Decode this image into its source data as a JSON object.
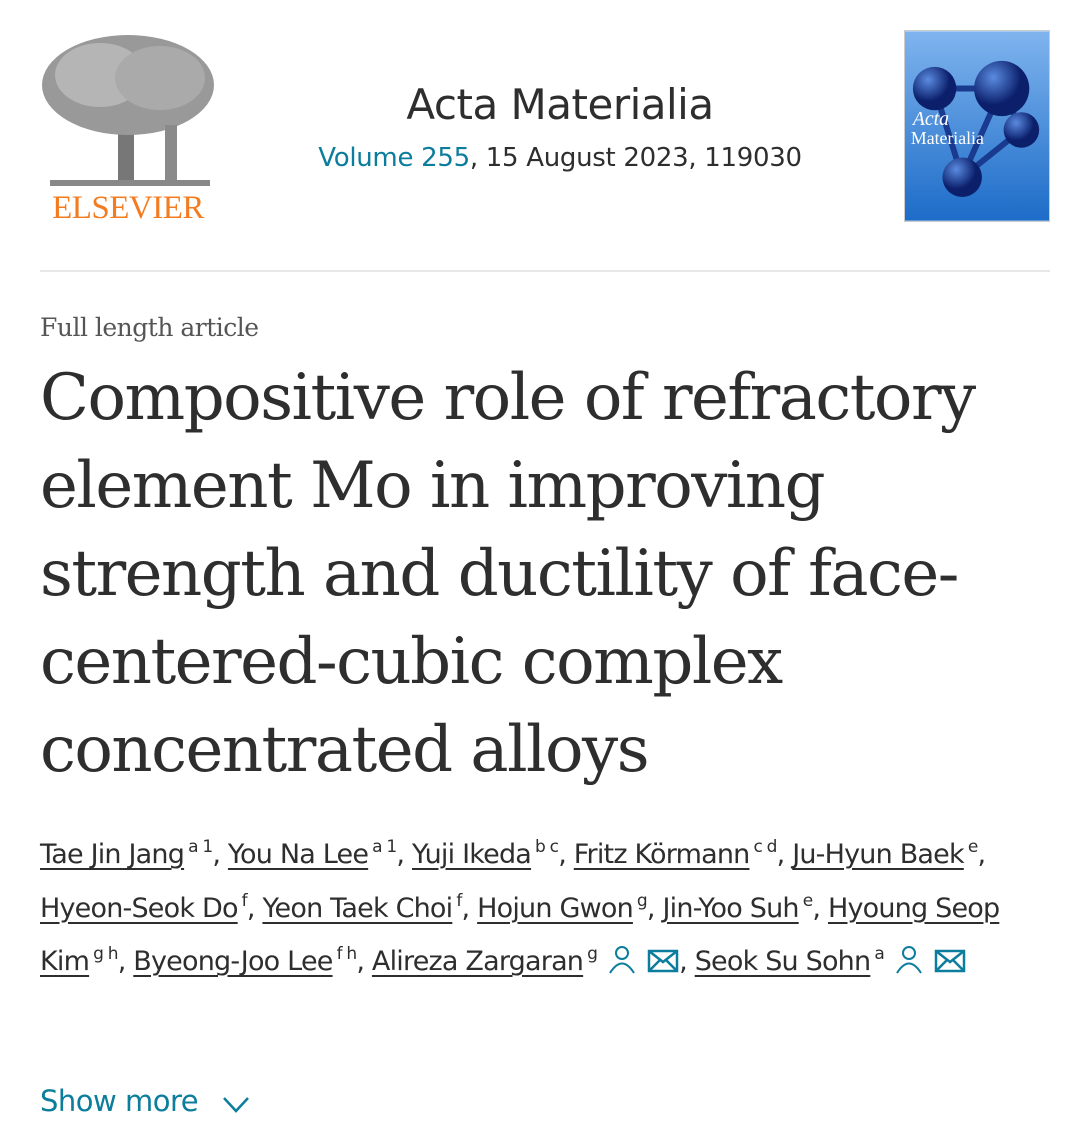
{
  "header": {
    "publisher_logo": "ELSEVIER",
    "journal_title": "Acta Materialia",
    "volume_link": "Volume 255",
    "date_and_article": ", 15 August 2023, 119030",
    "cover_title": "Acta Materialia"
  },
  "article": {
    "type": "Full length article",
    "title": "Compositive role of refractory element Mo in improving strength and ductility of face-centered-cubic complex concentrated alloys"
  },
  "authors": [
    {
      "name": "Tae Jin Jang",
      "sup": "a 1"
    },
    {
      "name": "You Na Lee",
      "sup": "a 1"
    },
    {
      "name": "Yuji Ikeda",
      "sup": "b c"
    },
    {
      "name": "Fritz Körmann",
      "sup": "c d"
    },
    {
      "name": "Ju-Hyun Baek",
      "sup": "e"
    },
    {
      "name": "Hyeon-Seok Do",
      "sup": "f"
    },
    {
      "name": "Yeon Taek Choi",
      "sup": "f"
    },
    {
      "name": "Hojun Gwon",
      "sup": "g"
    },
    {
      "name": "Jin-Yoo Suh",
      "sup": "e"
    },
    {
      "name": "Hyoung Seop Kim",
      "sup": "g h"
    },
    {
      "name": "Byeong-Joo Lee",
      "sup": "f h"
    },
    {
      "name": "Alireza Zargaran",
      "sup": "g",
      "icons": [
        "person-icon",
        "mail-icon"
      ]
    },
    {
      "name": "Seok Su Sohn",
      "sup": "a",
      "icons": [
        "person-icon",
        "mail-icon"
      ]
    }
  ],
  "show_more": "Show more",
  "colors": {
    "link": "#0c7d9c",
    "logo": "#f47c20",
    "text": "#2e2e2e"
  }
}
